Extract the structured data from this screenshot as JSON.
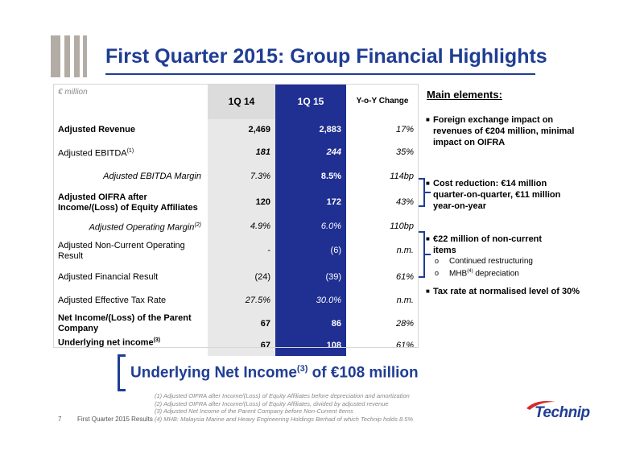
{
  "title": "First Quarter 2015: Group Financial Highlights",
  "table": {
    "unit": "€ million",
    "columns": [
      "1Q 14",
      "1Q 15",
      "Y-o-Y Change"
    ],
    "rows": [
      {
        "label": "Adjusted Revenue",
        "sup": "",
        "v14": "2,469",
        "v15": "2,883",
        "yoy": "17%"
      },
      {
        "label": "Adjusted EBITDA",
        "sup": "(1)",
        "v14": "181",
        "v15": "244",
        "yoy": "35%"
      },
      {
        "label": "Adjusted EBITDA Margin",
        "sup": "",
        "v14": "7.3%",
        "v15": "8.5%",
        "yoy": "114bp"
      },
      {
        "label": "Adjusted OIFRA after Income/(Loss) of Equity Affiliates",
        "sup": "",
        "v14": "120",
        "v15": "172",
        "yoy": "43%"
      },
      {
        "label": "Adjusted Operating Margin",
        "sup": "(2)",
        "v14": "4.9%",
        "v15": "6.0%",
        "yoy": "110bp"
      },
      {
        "label": "Adjusted Non-Current Operating Result",
        "sup": "",
        "v14": "-",
        "v15": "(6)",
        "yoy": "n.m."
      },
      {
        "label": "Adjusted Financial Result",
        "sup": "",
        "v14": "(24)",
        "v15": "(39)",
        "yoy": "61%"
      },
      {
        "label": "Adjusted Effective Tax Rate",
        "sup": "",
        "v14": "27.5%",
        "v15": "30.0%",
        "yoy": "n.m."
      },
      {
        "label": "Net Income/(Loss) of the Parent Company",
        "sup": "",
        "v14": "67",
        "v15": "86",
        "yoy": "28%"
      },
      {
        "label": "Underlying net income",
        "sup": "(3)",
        "v14": "67",
        "v15": "108",
        "yoy": "61%"
      }
    ]
  },
  "main": {
    "heading": "Main elements:",
    "bullets": [
      "Foreign exchange impact on revenues of €204 million, minimal impact on OIFRA",
      "Cost reduction: €14 million quarter-on-quarter, €11 million year-on-year",
      "€22 million of non-current items",
      "Tax rate at normalised level of 30%"
    ],
    "sub_items": [
      "Continued restructuring",
      "MHB",
      "(4)",
      " depreciation"
    ]
  },
  "callout": {
    "pre": "Underlying Net Income",
    "sup": "(3)",
    "post": " of €108 million"
  },
  "footer": {
    "page": "7",
    "source": "First Quarter 2015 Results",
    "notes": [
      "(1) Adjusted OIFRA after Income/(Loss) of Equity Affiliates before depreciation and amortization",
      "(2) Adjusted OIFRA after Income/(Loss) of Equity Affiliates, divided by adjusted revenue",
      "(3) Adjusted Net Income of the Parent Company before Non-Current Items",
      "(4) MHB: Malaysia Marine and Heavy Engineering Holdings Berhad of which Technip holds 8.5%"
    ]
  },
  "brand": "Technip",
  "colors": {
    "accent": "#1f3d93",
    "column_highlight": "#1f2f92",
    "logo_bars": "#b3aca5",
    "column_grey": "#e8e8e8"
  }
}
